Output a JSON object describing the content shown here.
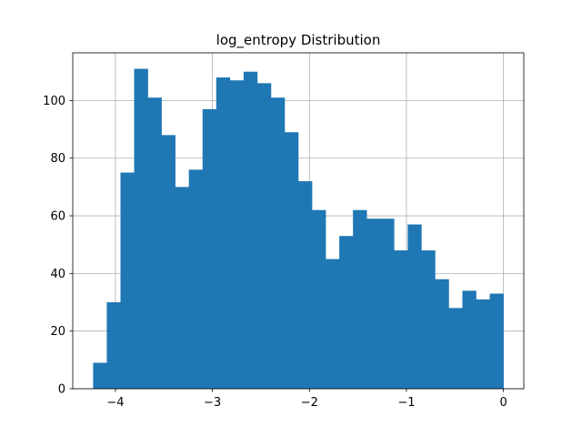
{
  "chart_data": {
    "type": "bar",
    "subtype": "histogram",
    "title": "log_entropy Distribution",
    "xlabel": "",
    "ylabel": "",
    "bin_start": -4.23,
    "bin_width": 0.141,
    "counts": [
      9,
      30,
      75,
      111,
      101,
      88,
      70,
      76,
      97,
      108,
      107,
      110,
      106,
      101,
      89,
      72,
      62,
      45,
      53,
      62,
      59,
      59,
      48,
      57,
      48,
      38,
      28,
      34,
      31,
      33
    ],
    "xlim": [
      -4.44,
      0.21
    ],
    "ylim": [
      0,
      116.55
    ],
    "xticks": [
      -4,
      -3,
      -2,
      -1,
      0
    ],
    "xtick_labels": [
      "−4",
      "−3",
      "−2",
      "−1",
      "0"
    ],
    "yticks": [
      0,
      20,
      40,
      60,
      80,
      100
    ],
    "ytick_labels": [
      "0",
      "20",
      "40",
      "60",
      "80",
      "100"
    ],
    "grid": true,
    "bar_color": "#1f77b4",
    "grid_color": "#b0b0b0"
  }
}
